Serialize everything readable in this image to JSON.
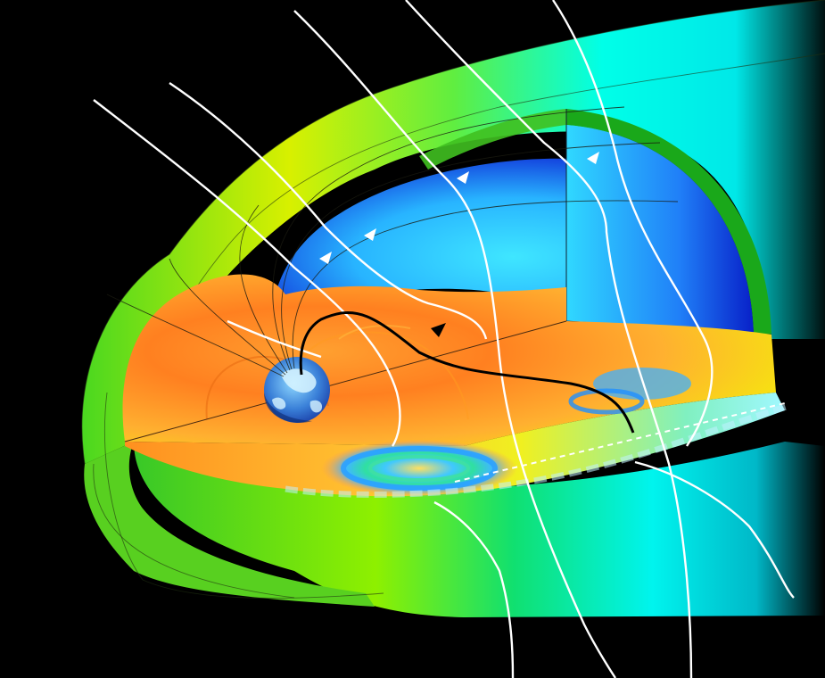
{
  "figure": {
    "background_color": "#000000",
    "palette": {
      "outer_magnetosheath": [
        "#14b814",
        "#7de600",
        "#e8f000",
        "#00ffee"
      ],
      "tail_lobe": [
        "#1438e0",
        "#2aa0ff",
        "#3fe0ff"
      ],
      "plasma_sheet": [
        "#ff6a10",
        "#ffa020",
        "#ffd040",
        "#f0f000"
      ],
      "earth": [
        "#1a3fa8",
        "#6fc8f0"
      ],
      "field_lines": "#ffffff",
      "flow_arrow": "#000000"
    },
    "elements": [
      "outer-magnetopause-shell",
      "tail-lobe-cutaway",
      "plasma-sheet-cutaway",
      "earth-globe",
      "solar-wind-field-lines",
      "reconnection-x-line",
      "earthward-flow-arrow",
      "plasmoid-vortices"
    ]
  }
}
